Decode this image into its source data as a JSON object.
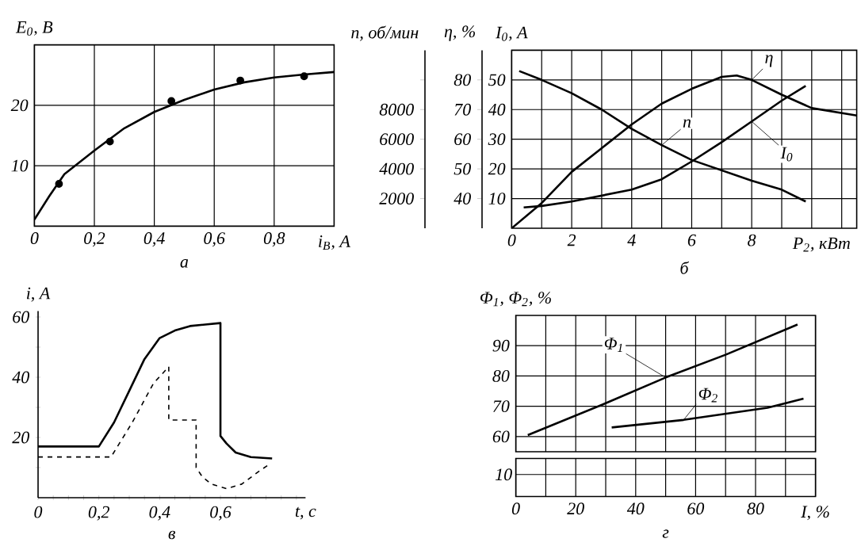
{
  "chart_data": [
    {
      "type": "line",
      "title": "а",
      "xlabel": "i$_{В}$, А",
      "ylabel": "E$_{0}$, В",
      "xlim": [
        0,
        1
      ],
      "ylim": [
        0,
        30
      ],
      "xticks": [
        0,
        {
          "value": 0.2,
          "label": "0,2"
        },
        {
          "value": 0.4,
          "label": "0,4"
        },
        {
          "value": 0.6,
          "label": "0,6"
        },
        {
          "value": 0.8,
          "label": "0,8"
        }
      ],
      "yticks": [
        10,
        20
      ],
      "grid": true,
      "series": [
        {
          "type": "line",
          "color": "#000000",
          "x": [
            0,
            0.05,
            0.1,
            0.2,
            0.3,
            0.4,
            0.5,
            0.6,
            0.7,
            0.8,
            0.9,
            1.0
          ],
          "values": [
            1.1,
            5,
            8.6,
            12.5,
            16.2,
            18.9,
            20.9,
            22.6,
            23.8,
            24.6,
            25.1,
            25.5
          ]
        },
        {
          "type": "scatter",
          "marker": "circle",
          "color": "#000000",
          "x": [
            0.082,
            0.252,
            0.457,
            0.687,
            0.9
          ],
          "values": [
            7.0,
            14.0,
            20.7,
            24.1,
            24.8
          ]
        }
      ]
    },
    {
      "type": "line",
      "title": "б",
      "xlabel": "P$_{2}$, кВт",
      "ylabel": "I$_{0}$, А",
      "y2label": "η, %",
      "y3label": "n, об/мин",
      "xlim": [
        0,
        11.5
      ],
      "ylim": [
        0,
        60
      ],
      "y2lim": [
        30,
        90
      ],
      "y3lim": [
        0,
        12000
      ],
      "xticks": [
        0,
        {
          "value": 1,
          "label": null
        },
        2,
        {
          "value": 3,
          "label": null
        },
        4,
        {
          "value": 5,
          "label": null
        },
        6,
        {
          "value": 7,
          "label": null
        },
        8,
        {
          "value": 9,
          "label": null
        },
        {
          "value": 10,
          "label": null
        },
        {
          "value": 11,
          "label": null
        }
      ],
      "yticks": [
        10,
        20,
        30,
        40,
        50
      ],
      "y2ticks": [
        40,
        50,
        60,
        70,
        80
      ],
      "y3ticks": [
        2000,
        4000,
        6000,
        8000,
        {
          "value": 10000,
          "label": null
        }
      ],
      "grid": true,
      "series": [
        {
          "name": "η",
          "axis": "y2",
          "color": "#000000",
          "x": [
            0,
            1,
            2,
            3,
            4,
            5,
            6,
            7,
            7.5,
            8,
            9,
            10,
            11.5
          ],
          "values": [
            30,
            38.5,
            49,
            57,
            65,
            72,
            77,
            81,
            81.5,
            80,
            75,
            70.5,
            68
          ]
        },
        {
          "name": "n",
          "axis": "y3",
          "color": "#000000",
          "x": [
            0.25,
            1,
            2,
            3,
            4,
            5,
            6,
            7,
            8,
            9,
            9.8
          ],
          "values": [
            10600,
            10000,
            9100,
            8000,
            6700,
            5600,
            4600,
            3900,
            3200,
            2600,
            1800
          ]
        },
        {
          "name": "I$_{0}$",
          "color": "#000000",
          "x": [
            0.4,
            1,
            2,
            3,
            4,
            5,
            6,
            7,
            8,
            9,
            9.8
          ],
          "values": [
            7,
            7.5,
            9,
            11,
            13,
            16.5,
            22.5,
            29,
            36,
            43,
            48
          ]
        }
      ]
    },
    {
      "type": "line",
      "title": "в",
      "xlabel": "t, с",
      "ylabel": "i, А",
      "xlim": [
        0,
        0.88
      ],
      "ylim": [
        0,
        62
      ],
      "xticks": [
        0,
        {
          "value": 0.05,
          "label": null
        },
        {
          "value": 0.1,
          "label": null
        },
        {
          "value": 0.15,
          "label": null
        },
        {
          "value": 0.2,
          "label": "0,2"
        },
        {
          "value": 0.25,
          "label": null
        },
        {
          "value": 0.3,
          "label": null
        },
        {
          "value": 0.35,
          "label": null
        },
        {
          "value": 0.4,
          "label": "0,4"
        },
        {
          "value": 0.45,
          "label": null
        },
        {
          "value": 0.5,
          "label": null
        },
        {
          "value": 0.55,
          "label": null
        },
        {
          "value": 0.6,
          "label": "0,6"
        },
        {
          "value": 0.65,
          "label": null
        },
        {
          "value": 0.7,
          "label": null
        },
        {
          "value": 0.75,
          "label": null
        },
        {
          "value": 0.8,
          "label": null
        },
        {
          "value": 0.85,
          "label": null
        }
      ],
      "yticks": [
        {
          "value": 10,
          "label": null
        },
        20,
        {
          "value": 30,
          "label": null
        },
        40,
        {
          "value": 50,
          "label": null
        },
        60
      ],
      "series": [
        {
          "line_style": "solid",
          "color": "#000000",
          "x": [
            0,
            0.2,
            0.25,
            0.3,
            0.35,
            0.4,
            0.45,
            0.5,
            0.55,
            0.6,
            0.6,
            0.62,
            0.65,
            0.7,
            0.77
          ],
          "values": [
            17,
            17,
            25,
            35.5,
            46,
            53,
            55.5,
            57,
            57.5,
            58,
            20.5,
            18,
            15,
            13.5,
            13
          ]
        },
        {
          "line_style": "dashed",
          "color": "#000000",
          "x": [
            0,
            0.24,
            0.31,
            0.38,
            0.43,
            0.43,
            0.52,
            0.52,
            0.54,
            0.57,
            0.62,
            0.67,
            0.73,
            0.76
          ],
          "values": [
            13.5,
            13.5,
            25,
            38,
            43.5,
            25.8,
            25.8,
            10,
            7,
            4.5,
            3,
            4.5,
            9,
            11
          ]
        }
      ]
    },
    {
      "type": "line",
      "title": "г",
      "xlabel": "I, %",
      "ylabel": "Φ$_{1}$, Φ$_{2}$, %",
      "annotations": [
        "10"
      ],
      "xlim": [
        0,
        100
      ],
      "ylim": [
        55,
        100
      ],
      "xticks": [
        0,
        {
          "value": 10,
          "label": null
        },
        20,
        {
          "value": 30,
          "label": null
        },
        40,
        {
          "value": 50,
          "label": null
        },
        60,
        {
          "value": 70,
          "label": null
        },
        80,
        {
          "value": 90,
          "label": null
        },
        {
          "value": 100,
          "label": null
        }
      ],
      "yticks": [
        60,
        70,
        80,
        90
      ],
      "grid": true,
      "series": [
        {
          "name": "Φ$_{1}$",
          "color": "#000000",
          "x": [
            4,
            30,
            50,
            70,
            94
          ],
          "values": [
            60.5,
            71,
            79.5,
            87,
            97
          ]
        },
        {
          "name": "Φ$_{2}$",
          "color": "#000000",
          "x": [
            32,
            56,
            84,
            96
          ],
          "values": [
            63,
            65.5,
            69.5,
            72.5
          ]
        }
      ]
    }
  ]
}
